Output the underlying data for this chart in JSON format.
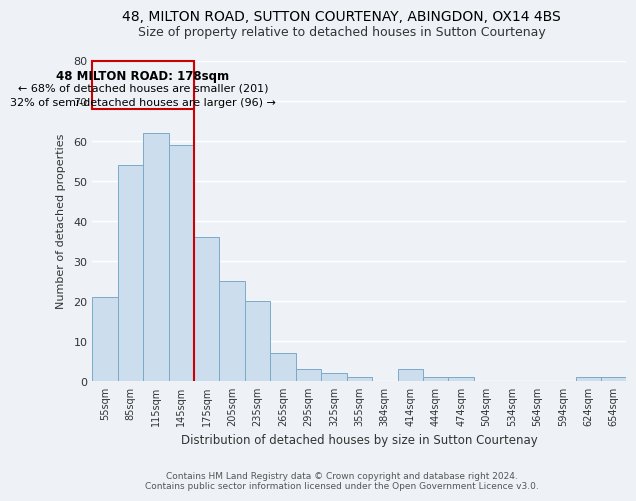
{
  "title": "48, MILTON ROAD, SUTTON COURTENAY, ABINGDON, OX14 4BS",
  "subtitle": "Size of property relative to detached houses in Sutton Courtenay",
  "xlabel": "Distribution of detached houses by size in Sutton Courtenay",
  "ylabel": "Number of detached properties",
  "bar_color": "#ccdded",
  "bar_edge_color": "#7aaac8",
  "background_color": "#eef2f7",
  "grid_color": "#ffffff",
  "categories": [
    "55sqm",
    "85sqm",
    "115sqm",
    "145sqm",
    "175sqm",
    "205sqm",
    "235sqm",
    "265sqm",
    "295sqm",
    "325sqm",
    "355sqm",
    "384sqm",
    "414sqm",
    "444sqm",
    "474sqm",
    "504sqm",
    "534sqm",
    "564sqm",
    "594sqm",
    "624sqm",
    "654sqm"
  ],
  "values": [
    21,
    54,
    62,
    59,
    36,
    25,
    20,
    7,
    3,
    2,
    1,
    0,
    3,
    1,
    1,
    0,
    0,
    0,
    0,
    1,
    1
  ],
  "ylim": [
    0,
    80
  ],
  "yticks": [
    0,
    10,
    20,
    30,
    40,
    50,
    60,
    70,
    80
  ],
  "marker_index": 4,
  "marker_label_line1": "48 MILTON ROAD: 178sqm",
  "marker_label_line2": "← 68% of detached houses are smaller (201)",
  "marker_label_line3": "32% of semi-detached houses are larger (96) →",
  "marker_color": "#cc0000",
  "annotation_box_edge_color": "#cc0000",
  "footnote1": "Contains HM Land Registry data © Crown copyright and database right 2024.",
  "footnote2": "Contains public sector information licensed under the Open Government Licence v3.0."
}
